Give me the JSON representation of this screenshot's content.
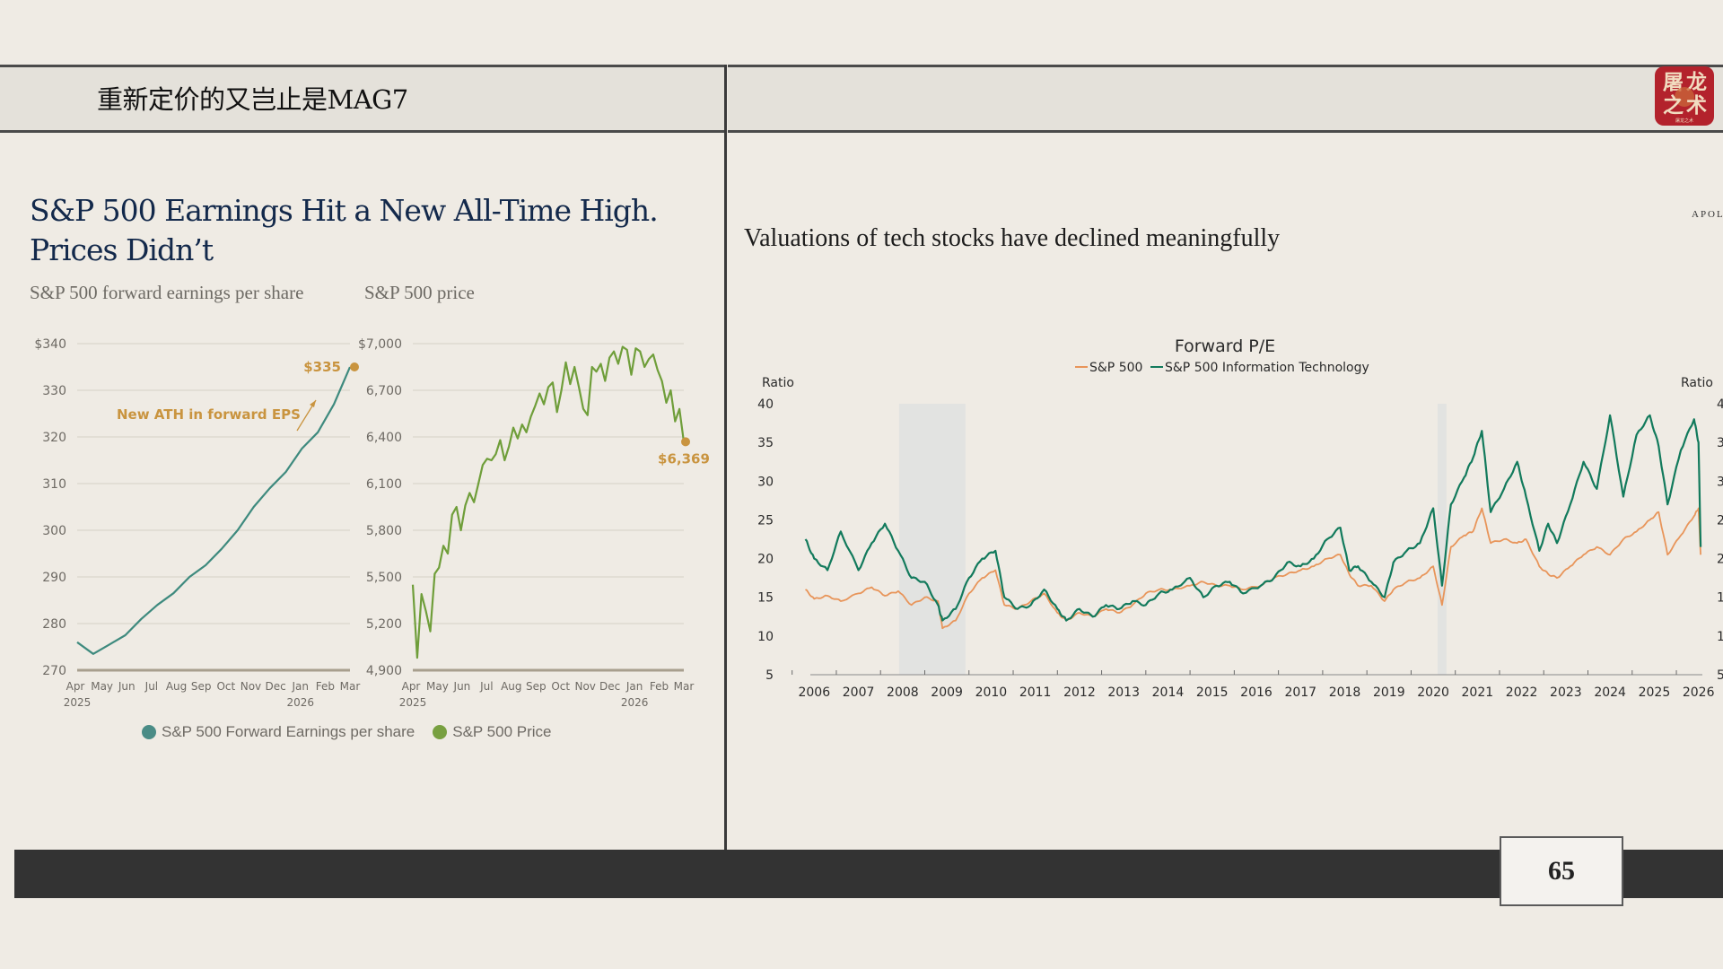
{
  "slide": {
    "title": "重新定价的又岂止是MAG7",
    "page_number": "65",
    "logo": {
      "line1a": "屠",
      "line1b": "龙",
      "line2a": "之",
      "line2b": "术",
      "caption": "屠龙之术"
    },
    "source_tag": "APOL"
  },
  "left_panel": {
    "title": "S&P 500 Earnings Hit a New All-Time High. Prices Didn’t",
    "subhead_eps": "S&P 500 forward earnings per share",
    "subhead_price": "S&P 500 price",
    "legend": [
      {
        "label": "S&P 500 Forward Earnings per share",
        "color": "#4a8c86"
      },
      {
        "label": "S&P 500 Price",
        "color": "#78a040"
      }
    ]
  },
  "right_panel": {
    "title": "Valuations of tech stocks have declined meaningfully"
  },
  "chart_data": [
    {
      "type": "line",
      "title": "S&P 500 forward earnings per share",
      "x": [
        "Apr 2025",
        "May",
        "Jun",
        "Jul",
        "Aug",
        "Sep",
        "Oct",
        "Nov",
        "Dec",
        "Jan 2026",
        "Feb",
        "Mar"
      ],
      "x_tick_labels": [
        "Apr",
        "May",
        "Jun",
        "Jul",
        "Aug",
        "Sep",
        "Oct",
        "Nov",
        "Dec",
        "Jan",
        "Feb",
        "Mar"
      ],
      "x_year_labels": [
        {
          "at": "Apr",
          "label": "2025"
        },
        {
          "at": "Jan",
          "label": "2026"
        }
      ],
      "y_tick_labels": [
        "$340",
        "330",
        "320",
        "310",
        "300",
        "290",
        "280",
        "270"
      ],
      "ylim": [
        270,
        340
      ],
      "series": [
        {
          "name": "S&P 500 Forward Earnings per share",
          "color": "#3e8a7e",
          "values": [
            276,
            273.5,
            275.5,
            277.5,
            281,
            284,
            286.5,
            290,
            292.5,
            296,
            300,
            305,
            309,
            312.5,
            317.5,
            321,
            327,
            335
          ]
        }
      ],
      "annotations": [
        {
          "text": "$335",
          "color": "#c9943f",
          "point": {
            "x": "Mar",
            "y": 335
          }
        },
        {
          "text": "New ATH in forward EPS",
          "color": "#c9943f"
        }
      ]
    },
    {
      "type": "line",
      "title": "S&P 500 price",
      "x_tick_labels": [
        "Apr",
        "May",
        "Jun",
        "Jul",
        "Aug",
        "Sep",
        "Oct",
        "Nov",
        "Dec",
        "Jan",
        "Feb",
        "Mar"
      ],
      "x_year_labels": [
        {
          "at": "Apr",
          "label": "2025"
        },
        {
          "at": "Jan",
          "label": "2026"
        }
      ],
      "y_tick_labels": [
        "$7,000",
        "6,700",
        "6,400",
        "6,100",
        "5,800",
        "5,500",
        "5,200",
        "4,900"
      ],
      "ylim": [
        4900,
        7000
      ],
      "series": [
        {
          "name": "S&P 500 Price",
          "color": "#6f9e3a",
          "values": [
            5450,
            4980,
            5390,
            5280,
            5150,
            5520,
            5560,
            5700,
            5650,
            5900,
            5950,
            5800,
            5960,
            6040,
            5980,
            6100,
            6220,
            6260,
            6250,
            6290,
            6380,
            6250,
            6340,
            6460,
            6390,
            6480,
            6430,
            6530,
            6600,
            6680,
            6610,
            6720,
            6750,
            6560,
            6700,
            6880,
            6740,
            6850,
            6720,
            6580,
            6540,
            6850,
            6820,
            6870,
            6760,
            6910,
            6950,
            6870,
            6980,
            6960,
            6800,
            6970,
            6950,
            6850,
            6900,
            6930,
            6830,
            6760,
            6620,
            6700,
            6500,
            6580,
            6369
          ]
        }
      ],
      "annotations": [
        {
          "text": "$6,369",
          "color": "#c9943f",
          "point": {
            "x": "Mar",
            "y": 6369
          }
        }
      ]
    },
    {
      "type": "line",
      "title": "Forward P/E",
      "ylabel_left": "Ratio",
      "ylabel_right": "Ratio",
      "ylim": [
        5,
        40
      ],
      "y_ticks": [
        40,
        35,
        30,
        25,
        20,
        15,
        10,
        5
      ],
      "xlim": [
        2005.75,
        2026.25
      ],
      "x_tick_labels": [
        "2006",
        "2007",
        "2008",
        "2009",
        "2010",
        "2011",
        "2012",
        "2013",
        "2014",
        "2015",
        "2016",
        "2017",
        "2018",
        "2019",
        "2020",
        "2021",
        "2022",
        "2023",
        "2024",
        "2025",
        "2026"
      ],
      "recessions": [
        [
          2007.92,
          2009.42
        ],
        [
          2020.1,
          2020.3
        ]
      ],
      "legend": [
        "S&P 500",
        "S&P 500 Information Technology"
      ],
      "series": [
        {
          "name": "S&P 500",
          "color": "#e8955a",
          "x": [
            2005.8,
            2006.0,
            2006.3,
            2006.6,
            2007.0,
            2007.3,
            2007.6,
            2007.9,
            2008.2,
            2008.5,
            2008.8,
            2008.9,
            2009.2,
            2009.5,
            2009.8,
            2010.1,
            2010.3,
            2010.6,
            2010.9,
            2011.2,
            2011.5,
            2011.7,
            2012.0,
            2012.3,
            2012.6,
            2012.9,
            2013.2,
            2013.5,
            2013.8,
            2014.1,
            2014.5,
            2014.8,
            2015.1,
            2015.4,
            2015.7,
            2016.1,
            2016.4,
            2016.7,
            2017.0,
            2017.3,
            2017.6,
            2017.9,
            2018.1,
            2018.3,
            2018.6,
            2018.9,
            2019.1,
            2019.4,
            2019.7,
            2020.0,
            2020.2,
            2020.4,
            2020.7,
            2020.9,
            2021.1,
            2021.3,
            2021.6,
            2021.9,
            2022.1,
            2022.4,
            2022.6,
            2022.8,
            2023.1,
            2023.4,
            2023.7,
            2024.0,
            2024.3,
            2024.6,
            2024.9,
            2025.1,
            2025.3,
            2025.6,
            2025.9,
            2026.0,
            2026.05
          ],
          "values": [
            16.0,
            14.8,
            15.2,
            14.5,
            15.5,
            16.3,
            15.2,
            15.8,
            14.0,
            15.0,
            14.5,
            11.0,
            12.0,
            15.5,
            17.5,
            18.5,
            14.0,
            13.5,
            14.5,
            15.5,
            13.0,
            12.0,
            13.0,
            12.5,
            13.5,
            13.0,
            14.0,
            15.5,
            16.0,
            16.0,
            16.5,
            17.0,
            16.5,
            16.5,
            16.0,
            16.5,
            17.5,
            18.0,
            18.5,
            19.0,
            20.0,
            20.5,
            18.0,
            16.5,
            16.5,
            14.5,
            16.0,
            17.0,
            17.5,
            19.0,
            14.0,
            21.5,
            23.0,
            23.5,
            26.5,
            22.0,
            22.5,
            22.0,
            22.5,
            19.0,
            18.0,
            17.5,
            19.0,
            20.5,
            21.5,
            20.5,
            22.5,
            23.5,
            25.0,
            26.0,
            20.5,
            23.0,
            25.5,
            26.5,
            20.5
          ]
        },
        {
          "name": "S&P 500 Information Technology",
          "color": "#127a5c",
          "x": [
            2005.8,
            2006.0,
            2006.3,
            2006.6,
            2007.0,
            2007.3,
            2007.6,
            2007.9,
            2008.2,
            2008.5,
            2008.8,
            2008.9,
            2009.2,
            2009.5,
            2009.8,
            2010.1,
            2010.3,
            2010.6,
            2010.9,
            2011.2,
            2011.5,
            2011.7,
            2012.0,
            2012.3,
            2012.6,
            2012.9,
            2013.2,
            2013.5,
            2013.8,
            2014.1,
            2014.5,
            2014.8,
            2015.1,
            2015.4,
            2015.7,
            2016.1,
            2016.4,
            2016.7,
            2017.0,
            2017.3,
            2017.6,
            2017.9,
            2018.1,
            2018.3,
            2018.6,
            2018.9,
            2019.1,
            2019.4,
            2019.7,
            2020.0,
            2020.2,
            2020.4,
            2020.7,
            2020.9,
            2021.1,
            2021.3,
            2021.6,
            2021.9,
            2022.1,
            2022.4,
            2022.6,
            2022.8,
            2023.1,
            2023.4,
            2023.7,
            2024.0,
            2024.3,
            2024.6,
            2024.9,
            2025.1,
            2025.3,
            2025.6,
            2025.9,
            2026.0,
            2026.05
          ],
          "values": [
            22.5,
            20.0,
            18.5,
            23.5,
            18.5,
            22.0,
            24.5,
            21.0,
            17.5,
            17.0,
            14.0,
            12.0,
            13.5,
            17.5,
            20.0,
            21.0,
            15.0,
            13.5,
            14.0,
            16.0,
            13.5,
            12.0,
            13.5,
            12.5,
            14.0,
            13.5,
            14.5,
            14.0,
            15.5,
            16.0,
            17.5,
            15.0,
            16.5,
            17.0,
            15.5,
            16.5,
            17.5,
            19.5,
            19.0,
            20.0,
            22.5,
            24.0,
            18.5,
            19.0,
            17.0,
            15.0,
            19.5,
            21.0,
            22.0,
            26.5,
            16.5,
            27.0,
            30.5,
            33.0,
            36.5,
            26.0,
            29.0,
            32.5,
            28.0,
            21.0,
            24.5,
            22.0,
            27.0,
            32.5,
            29.0,
            38.5,
            28.0,
            36.0,
            38.5,
            34.5,
            27.0,
            34.0,
            38.0,
            35.0,
            21.5
          ]
        }
      ]
    }
  ]
}
